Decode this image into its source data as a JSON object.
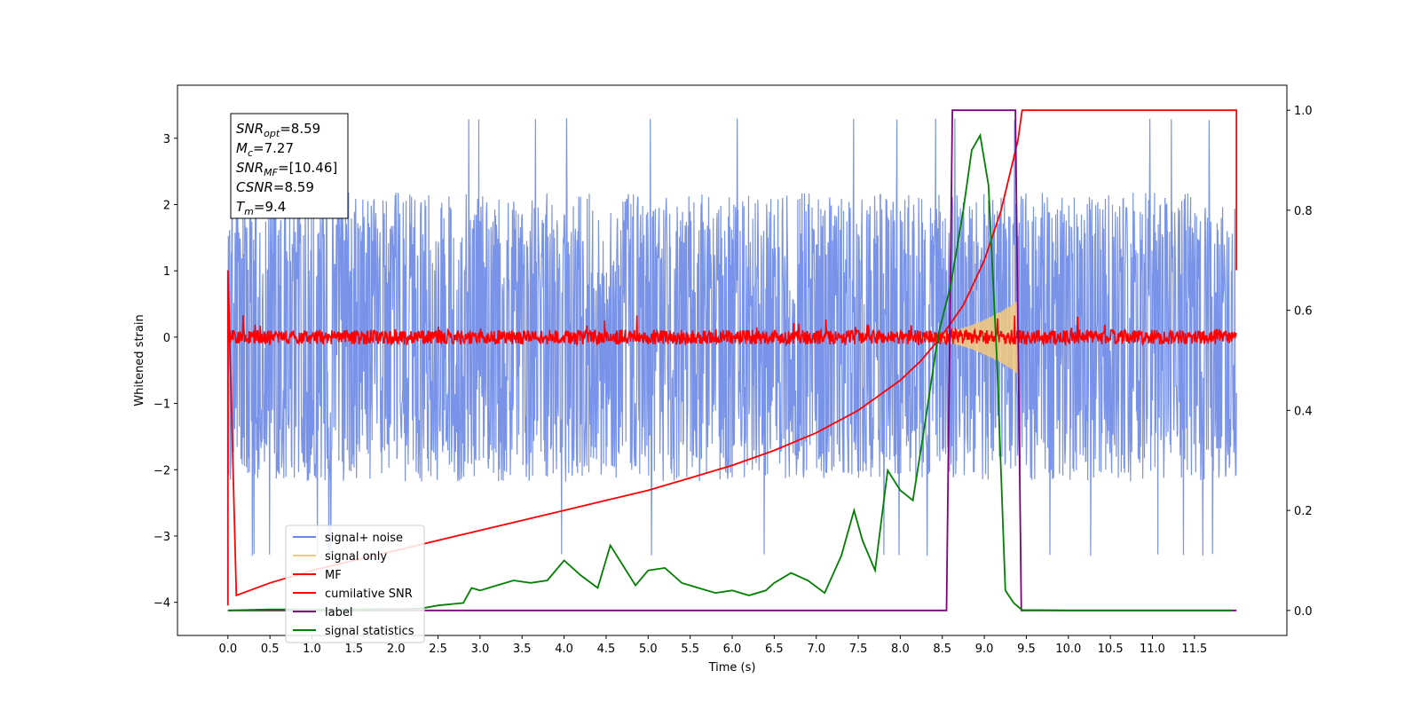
{
  "chart_data": {
    "type": "line",
    "title": "",
    "xlabel": "Time (s)",
    "ylabel": "Whitened strain",
    "ylabel_right": "",
    "xlim": [
      -0.6,
      12.6
    ],
    "ylim": [
      -4.5,
      3.8
    ],
    "ylim_right": [
      -0.05,
      1.05
    ],
    "x_ticks": [
      0.0,
      0.5,
      1.0,
      1.5,
      2.0,
      2.5,
      3.0,
      3.5,
      4.0,
      4.5,
      5.0,
      5.5,
      6.0,
      6.5,
      7.0,
      7.5,
      8.0,
      8.5,
      9.0,
      9.5,
      10.0,
      10.5,
      11.0,
      11.5
    ],
    "x_tick_labels": [
      "0.0",
      "0.5",
      "1.0",
      "1.5",
      "2.0",
      "2.5",
      "3.0",
      "3.5",
      "4.0",
      "4.5",
      "5.0",
      "5.5",
      "6.0",
      "6.5",
      "7.0",
      "7.5",
      "8.0",
      "8.5",
      "9.0",
      "9.5",
      "10.0",
      "10.5",
      "11.0",
      "11.5"
    ],
    "y_ticks": [
      -4,
      -3,
      -2,
      -1,
      0,
      1,
      2,
      3
    ],
    "y_tick_labels": [
      "−4",
      "−3",
      "−2",
      "−1",
      "0",
      "1",
      "2",
      "3"
    ],
    "y_right_ticks": [
      0.0,
      0.2,
      0.4,
      0.6,
      0.8,
      1.0
    ],
    "y_right_tick_labels": [
      "0.0",
      "0.2",
      "0.4",
      "0.6",
      "0.8",
      "1.0"
    ],
    "grid": false,
    "legend_position": "lower-left",
    "annotation_box": {
      "lines": [
        {
          "name": "SNR",
          "sub": "opt",
          "value": "=8.59"
        },
        {
          "name": "M",
          "sub": "c",
          "value": "=7.27"
        },
        {
          "name": "SNR",
          "sub": "MF",
          "value": "=[10.46]"
        },
        {
          "name": "CSNR",
          "sub": "",
          "value": "=8.59"
        },
        {
          "name": "T",
          "sub": "m",
          "value": "=9.4"
        }
      ]
    },
    "series": [
      {
        "name": "signal+ noise",
        "color": "#6a87e6",
        "axis": "left",
        "kind": "noise",
        "x_range": [
          0,
          12
        ],
        "amplitude_range": [
          -3.3,
          3.4
        ]
      },
      {
        "name": "signal only",
        "color": "#f5c97a",
        "axis": "left",
        "kind": "chirp",
        "x_range": [
          8.0,
          9.4
        ],
        "peak_amplitude": 0.55
      },
      {
        "name": "MF",
        "color": "#ff0000",
        "axis": "left",
        "kind": "noise",
        "x_range": [
          0,
          12
        ],
        "amplitude_range": [
          -0.15,
          0.35
        ]
      },
      {
        "name": "cumilative SNR",
        "color": "#ff0000",
        "axis": "right",
        "x": [
          0.0,
          0.0,
          0.1,
          0.5,
          1.0,
          1.5,
          2.0,
          2.5,
          3.0,
          3.5,
          4.0,
          4.5,
          5.0,
          5.5,
          6.0,
          6.5,
          7.0,
          7.5,
          8.0,
          8.25,
          8.5,
          8.75,
          9.0,
          9.1,
          9.2,
          9.3,
          9.4,
          9.45,
          12.0,
          12.0
        ],
        "y": [
          0.01,
          0.68,
          0.03,
          0.055,
          0.08,
          0.1,
          0.12,
          0.14,
          0.16,
          0.18,
          0.2,
          0.22,
          0.24,
          0.265,
          0.29,
          0.32,
          0.355,
          0.4,
          0.46,
          0.5,
          0.55,
          0.61,
          0.7,
          0.75,
          0.8,
          0.87,
          0.94,
          1.0,
          1.0,
          0.68
        ]
      },
      {
        "name": "label",
        "color": "#800080",
        "axis": "right",
        "x": [
          0.0,
          8.55,
          8.62,
          9.37,
          9.44,
          12.0
        ],
        "y": [
          0.0,
          0.0,
          1.0,
          1.0,
          0.0,
          0.0
        ]
      },
      {
        "name": "signal statistics",
        "color": "#008000",
        "axis": "right",
        "x": [
          0.0,
          0.5,
          1.0,
          1.5,
          2.0,
          2.3,
          2.5,
          2.8,
          2.9,
          3.0,
          3.2,
          3.4,
          3.6,
          3.8,
          4.0,
          4.2,
          4.4,
          4.55,
          4.7,
          4.85,
          5.0,
          5.2,
          5.4,
          5.6,
          5.8,
          6.0,
          6.2,
          6.4,
          6.5,
          6.7,
          6.9,
          7.1,
          7.3,
          7.45,
          7.55,
          7.7,
          7.85,
          8.0,
          8.15,
          8.3,
          8.45,
          8.6,
          8.75,
          8.85,
          8.95,
          9.05,
          9.15,
          9.25,
          9.35,
          9.45,
          10.0,
          11.0,
          11.95
        ],
        "y": [
          0.0,
          0.002,
          0.002,
          0.002,
          0.003,
          0.004,
          0.01,
          0.015,
          0.045,
          0.04,
          0.05,
          0.06,
          0.055,
          0.06,
          0.1,
          0.07,
          0.045,
          0.13,
          0.09,
          0.05,
          0.08,
          0.085,
          0.055,
          0.045,
          0.035,
          0.04,
          0.03,
          0.04,
          0.055,
          0.075,
          0.06,
          0.035,
          0.11,
          0.2,
          0.14,
          0.08,
          0.28,
          0.24,
          0.22,
          0.38,
          0.55,
          0.65,
          0.8,
          0.92,
          0.95,
          0.85,
          0.5,
          0.04,
          0.015,
          0.001,
          0.0,
          0.0,
          0.0
        ]
      }
    ]
  }
}
